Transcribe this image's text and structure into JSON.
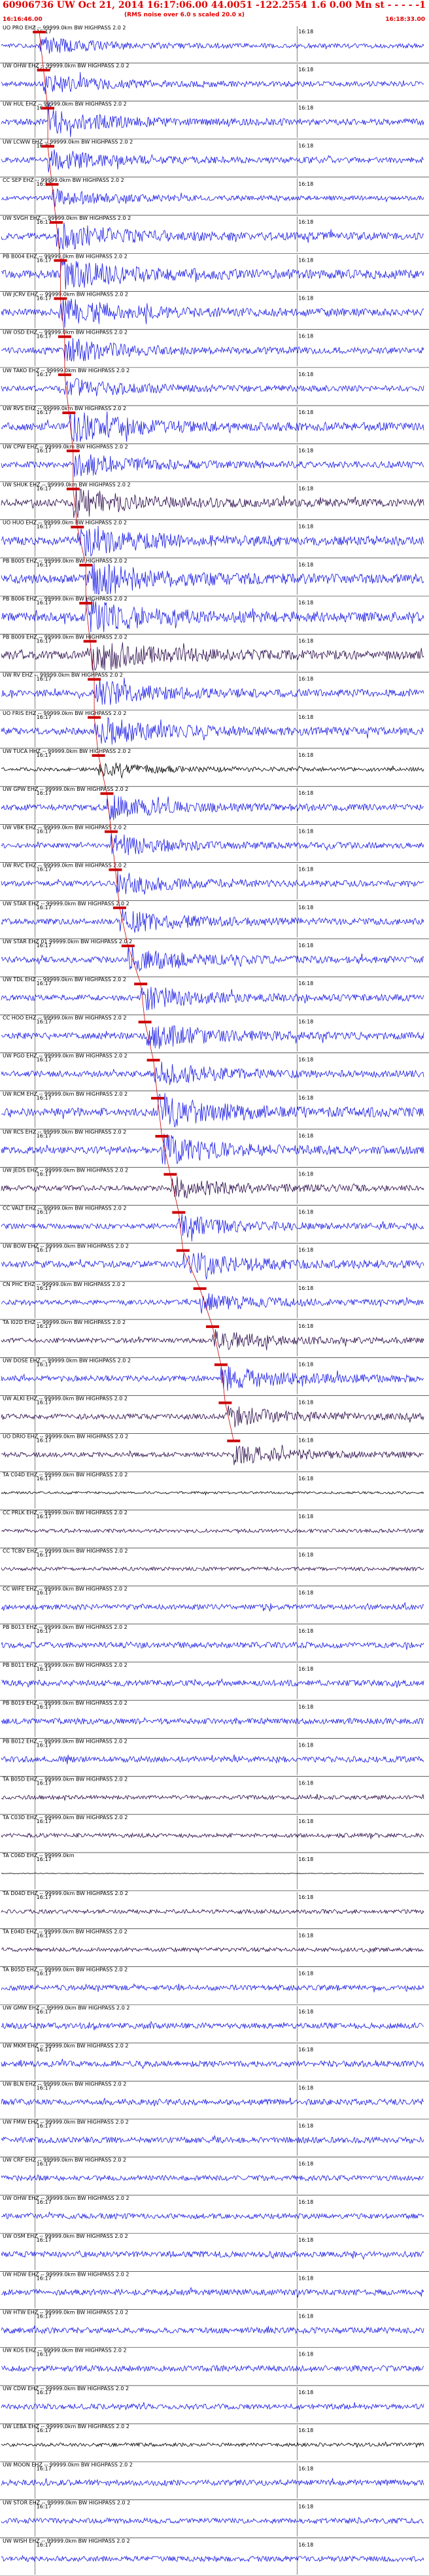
{
  "header": {
    "title": "60906736 UW Oct 21, 2014 16:17:06.00 44.0051 -122.2554 1.6 0.00 Mn st - - - - -1",
    "subtitle": "(RMS noise over 6.0 s scaled 20.0 x)",
    "start_time": "16:16:46.00",
    "end_time": "16:18:33.00"
  },
  "chart_data": {
    "type": "line",
    "title": "60906736 UW Oct 21, 2014 16:17:06.00 44.0051 -122.2554 1.6 0.00 Mn st - - - - -1",
    "time_range": [
      "16:16:46.00",
      "16:18:33.00"
    ],
    "tick_labels": [
      "16:17",
      "16:18"
    ],
    "colors": {
      "trace_blue": "#1a1ae6",
      "trace_dark": "#2a0a4a",
      "trace_black": "#000000",
      "pick": "#cc0000",
      "label": "#000000"
    },
    "series": [
      {
        "name": "UO PRO EHZ",
        "label": "UO PRO EHZ -- 99999.0km BW HIGHPASS 2.0 2",
        "color": "blue",
        "onset": 0.09,
        "amp": 7
      },
      {
        "name": "UW OHW EHZ",
        "label": "UW OHW EHZ -- 99999.0km BW HIGHPASS 2.0 2",
        "color": "blue",
        "onset": 0.1,
        "amp": 8
      },
      {
        "name": "UW HUL EHZ",
        "label": "UW HUL EHZ -- 99999.0km BW HIGHPASS 2.0 2",
        "color": "blue",
        "onset": 0.11,
        "amp": 10
      },
      {
        "name": "UW LCWW EHZ",
        "label": "UW LCWW EHZ -- 99999.0km BW HIGHPASS 2.0 2",
        "color": "blue",
        "onset": 0.11,
        "amp": 9
      },
      {
        "name": "CC SEP EHZ",
        "label": "CC SEP EHZ -- 99999.0km BW HIGHPASS 2.0 2",
        "color": "blue",
        "onset": 0.12,
        "amp": 7
      },
      {
        "name": "UW SVGH EHZ",
        "label": "UW SVGH EHZ -- 99999.0km BW HIGHPASS 2.0 2",
        "color": "blue",
        "onset": 0.13,
        "amp": 12
      },
      {
        "name": "PB B004 EHZ",
        "label": "PB B004 EHZ -- 99999.0km BW HIGHPASS 2.0 2",
        "color": "blue",
        "onset": 0.14,
        "amp": 14
      },
      {
        "name": "UW JCRV EHZ",
        "label": "UW JCRV EHZ -- 99999.0km BW HIGHPASS 2.0 2",
        "color": "blue",
        "onset": 0.14,
        "amp": 12
      },
      {
        "name": "UW OSD EHZ",
        "label": "UW OSD EHZ -- 99999.0km BW HIGHPASS 2.0 2",
        "color": "blue",
        "onset": 0.15,
        "amp": 10
      },
      {
        "name": "UW TAKO EHZ",
        "label": "UW TAKO EHZ -- 99999.0km BW HIGHPASS 2.0 2",
        "color": "blue",
        "onset": 0.15,
        "amp": 9
      },
      {
        "name": "UW RVS EHZ",
        "label": "UW RVS EHZ -- 99999.0km BW HIGHPASS 2.0 2",
        "color": "blue",
        "onset": 0.16,
        "amp": 13
      },
      {
        "name": "UW CPW EHZ",
        "label": "UW CPW EHZ -- 99999.0km BW HIGHPASS 2.0 2",
        "color": "blue",
        "onset": 0.17,
        "amp": 10
      },
      {
        "name": "UW SHUK EHZ",
        "label": "UW SHUK EHZ -- 99999.0km BW HIGHPASS 2.0 2",
        "color": "dark",
        "onset": 0.17,
        "amp": 12
      },
      {
        "name": "UO HUO EHZ",
        "label": "UO HUO EHZ -- 99999.0km BW HIGHPASS 2.0 2",
        "color": "blue",
        "onset": 0.18,
        "amp": 14
      },
      {
        "name": "PB B005 EHZ",
        "label": "PB B005 EHZ -- 99999.0km BW HIGHPASS 2.0 2",
        "color": "blue",
        "onset": 0.2,
        "amp": 15
      },
      {
        "name": "PB B006 EHZ",
        "label": "PB B006 EHZ -- 99999.0km BW HIGHPASS 2.0 2",
        "color": "blue",
        "onset": 0.2,
        "amp": 15
      },
      {
        "name": "PB B009 EHZ",
        "label": "PB B009 EHZ -- 99999.0km BW HIGHPASS 2.0 2",
        "color": "dark",
        "onset": 0.21,
        "amp": 14
      },
      {
        "name": "UW RV EHZ",
        "label": "UW RV EHZ -- 99999.0km BW HIGHPASS 2.0 2",
        "color": "blue",
        "onset": 0.22,
        "amp": 11
      },
      {
        "name": "UO FRIS EHZ",
        "label": "UO FRIS EHZ -- 99999.0km BW HIGHPASS 2.0 2",
        "color": "blue",
        "onset": 0.22,
        "amp": 12
      },
      {
        "name": "UW TUCA HHZ",
        "label": "UW TUCA HHZ -- 99999.0km BW HIGHPASS 2.0 2",
        "color": "black",
        "onset": 0.23,
        "amp": 6
      },
      {
        "name": "UW GPW EHZ",
        "label": "UW GPW EHZ -- 99999.0km BW HIGHPASS 2.0 2",
        "color": "blue",
        "onset": 0.25,
        "amp": 10
      },
      {
        "name": "UW VBK EHZ",
        "label": "UW VBK EHZ -- 99999.0km BW HIGHPASS 2.0 2",
        "color": "blue",
        "onset": 0.26,
        "amp": 9
      },
      {
        "name": "UW RVC EHZ",
        "label": "UW RVC EHZ -- 99999.0km BW HIGHPASS 2.0 2",
        "color": "blue",
        "onset": 0.27,
        "amp": 9
      },
      {
        "name": "UW STAR EHZ",
        "label": "UW STAR EHZ -- 99999.0km BW HIGHPASS 2.0 2",
        "color": "blue",
        "onset": 0.28,
        "amp": 10
      },
      {
        "name": "UW STAR EHZ 2",
        "label": "UW STAR EHZ 01 99999.0km BW HIGHPASS 2.0 2",
        "color": "blue",
        "onset": 0.3,
        "amp": 10
      },
      {
        "name": "UW TDL EHZ",
        "label": "UW TDL EHZ -- 99999.0km BW HIGHPASS 2.0 2",
        "color": "blue",
        "onset": 0.33,
        "amp": 10
      },
      {
        "name": "CC HOO EHZ",
        "label": "CC HOO EHZ -- 99999.0km BW HIGHPASS 2.0 2",
        "color": "blue",
        "onset": 0.34,
        "amp": 11
      },
      {
        "name": "UW PGO EHZ",
        "label": "UW PGO EHZ -- 99999.0km BW HIGHPASS 2.0 2",
        "color": "blue",
        "onset": 0.36,
        "amp": 10
      },
      {
        "name": "UW RCM EHZ",
        "label": "UW RCM EHZ -- 99999.0km BW HIGHPASS 2.0 2",
        "color": "blue",
        "onset": 0.37,
        "amp": 14
      },
      {
        "name": "UW RCS EHZ",
        "label": "UW RCS EHZ -- 99999.0km BW HIGHPASS 2.0 2",
        "color": "blue",
        "onset": 0.38,
        "amp": 12
      },
      {
        "name": "UW JEDS EHZ",
        "label": "UW JEDS EHZ -- 99999.0km BW HIGHPASS 2.0 2",
        "color": "dark",
        "onset": 0.4,
        "amp": 9
      },
      {
        "name": "CC VALT EHZ",
        "label": "CC VALT EHZ -- 99999.0km BW HIGHPASS 2.0 2",
        "color": "blue",
        "onset": 0.42,
        "amp": 9
      },
      {
        "name": "UW BOW EHZ",
        "label": "UW BOW EHZ -- 99999.0km BW HIGHPASS 2.0 2",
        "color": "blue",
        "onset": 0.43,
        "amp": 11
      },
      {
        "name": "CN PHC EHZ",
        "label": "CN PHC EHZ -- 99999.0km BW HIGHPASS 2.0 2",
        "color": "blue",
        "onset": 0.47,
        "amp": 8
      },
      {
        "name": "TA I02D EHZ",
        "label": "TA I02D EHZ -- 99999.0km BW HIGHPASS 2.0 2",
        "color": "dark",
        "onset": 0.5,
        "amp": 8
      },
      {
        "name": "UW DOSE EHZ",
        "label": "UW DOSE EHZ -- 99999.0km BW HIGHPASS 2.0 2",
        "color": "blue",
        "onset": 0.52,
        "amp": 10
      },
      {
        "name": "UW ALKI EHZ",
        "label": "UW ALKI EHZ -- 99999.0km BW HIGHPASS 2.0 2",
        "color": "dark",
        "onset": 0.53,
        "amp": 9
      },
      {
        "name": "UO DRIO EHZ",
        "label": "UO DRIO EHZ -- 99999.0km BW HIGHPASS 2.0 2",
        "color": "dark",
        "onset": 0.55,
        "amp": 8
      },
      {
        "name": "TA C04D EHZ",
        "label": "TA C04D EHZ -- 99999.0km BW HIGHPASS 2.0 2",
        "color": "black",
        "onset": null,
        "amp": 4
      },
      {
        "name": "CC PRLK EHZ",
        "label": "CC PRLK EHZ -- 99999.0km BW HIGHPASS 2.0 2",
        "color": "dark",
        "onset": null,
        "amp": 6
      },
      {
        "name": "CC TCBV EHZ",
        "label": "CC TCBV EHZ -- 99999.0km BW HIGHPASS 2.0 2",
        "color": "dark",
        "onset": null,
        "amp": 6
      },
      {
        "name": "CC WIFE EHZ",
        "label": "CC WIFE EHZ -- 99999.0km BW HIGHPASS 2.0 2",
        "color": "blue",
        "onset": null,
        "amp": 9
      },
      {
        "name": "PB B013 EHZ",
        "label": "PB B013 EHZ -- 99999.0km BW HIGHPASS 2.0 2",
        "color": "blue",
        "onset": null,
        "amp": 10
      },
      {
        "name": "PB B011 EHZ",
        "label": "PB B011 EHZ -- 99999.0km BW HIGHPASS 2.0 2",
        "color": "blue",
        "onset": null,
        "amp": 10
      },
      {
        "name": "PB B019 EHZ",
        "label": "PB B019 EHZ -- 99999.0km BW HIGHPASS 2.0 2",
        "color": "blue",
        "onset": null,
        "amp": 10
      },
      {
        "name": "PB B012 EHZ",
        "label": "PB B012 EHZ -- 99999.0km BW HIGHPASS 2.0 2",
        "color": "blue",
        "onset": null,
        "amp": 10
      },
      {
        "name": "TA B05D EHZ",
        "label": "TA B05D EHZ -- 99999.0km BW HIGHPASS 2.0 2",
        "color": "dark",
        "onset": null,
        "amp": 7
      },
      {
        "name": "TA C03D EHZ",
        "label": "TA C03D EHZ -- 99999.0km BW HIGHPASS 2.0 2",
        "color": "dark",
        "onset": null,
        "amp": 7
      },
      {
        "name": "TA C06D EHZ",
        "label": "TA C06D EHZ -- 99999.0km",
        "color": "black",
        "onset": null,
        "amp": 1
      },
      {
        "name": "TA D04D EHZ",
        "label": "TA D04D EHZ -- 99999.0km BW HIGHPASS 2.0 2",
        "color": "dark",
        "onset": null,
        "amp": 7
      },
      {
        "name": "TA E04D EHZ",
        "label": "TA E04D EHZ -- 99999.0km BW HIGHPASS 2.0 2",
        "color": "dark",
        "onset": null,
        "amp": 7
      },
      {
        "name": "TA B05D EHZ 2",
        "label": "TA B05D EHZ -- 99999.0km BW HIGHPASS 2.0 2",
        "color": "blue",
        "onset": null,
        "amp": 9
      },
      {
        "name": "UW GMW EHZ",
        "label": "UW GMW EHZ -- 99999.0km BW HIGHPASS 2.0 2",
        "color": "blue",
        "onset": null,
        "amp": 10
      },
      {
        "name": "UW MKM EHZ",
        "label": "UW MKM EHZ -- 99999.0km BW HIGHPASS 2.0 2",
        "color": "blue",
        "onset": null,
        "amp": 10
      },
      {
        "name": "UW BLN EHZ",
        "label": "UW BLN EHZ -- 99999.0km BW HIGHPASS 2.0 2",
        "color": "blue",
        "onset": null,
        "amp": 10
      },
      {
        "name": "UW FMW EHZ",
        "label": "UW FMW EHZ -- 99999.0km BW HIGHPASS 2.0 2",
        "color": "blue",
        "onset": null,
        "amp": 10
      },
      {
        "name": "UW CRF EHZ",
        "label": "UW CRF EHZ -- 99999.0km BW HIGHPASS 2.0 2",
        "color": "blue",
        "onset": null,
        "amp": 9
      },
      {
        "name": "UW OHW EHZ 2",
        "label": "UW OHW EHZ -- 99999.0km BW HIGHPASS 2.0 2",
        "color": "blue",
        "onset": null,
        "amp": 9
      },
      {
        "name": "UW OSM EHZ",
        "label": "UW OSM EHZ -- 99999.0km BW HIGHPASS 2.0 2",
        "color": "blue",
        "onset": null,
        "amp": 10
      },
      {
        "name": "UW HDW EHZ",
        "label": "UW HDW EHZ -- 99999.0km BW HIGHPASS 2.0 2",
        "color": "blue",
        "onset": null,
        "amp": 10
      },
      {
        "name": "UW HTW EHZ",
        "label": "UW HTW EHZ -- 99999.0km BW HIGHPASS 2.0 2",
        "color": "blue",
        "onset": null,
        "amp": 10
      },
      {
        "name": "UW KOS EHZ",
        "label": "UW KOS EHZ -- 99999.0km BW HIGHPASS 2.0 2",
        "color": "blue",
        "onset": null,
        "amp": 10
      },
      {
        "name": "UW CDW EHZ",
        "label": "UW CDW EHZ -- 99999.0km BW HIGHPASS 2.0 2",
        "color": "blue",
        "onset": null,
        "amp": 9
      },
      {
        "name": "UW LEBA EHZ",
        "label": "UW LEBA EHZ -- 99999.0km BW HIGHPASS 2.0 2",
        "color": "black",
        "onset": null,
        "amp": 6
      },
      {
        "name": "UW MOON EHZ",
        "label": "UW MOON EHZ -- 99999.0km BW HIGHPASS 2.0 2",
        "color": "blue",
        "onset": null,
        "amp": 10
      },
      {
        "name": "UW STOR EHZ",
        "label": "UW STOR EHZ -- 99999.0km BW HIGHPASS 2.0 2",
        "color": "blue",
        "onset": null,
        "amp": 9
      },
      {
        "name": "UW WISH EHZ",
        "label": "UW WISH EHZ -- 99999.0km BW HIGHPASS 2.0 2",
        "color": "blue",
        "onset": null,
        "amp": 9
      }
    ]
  }
}
